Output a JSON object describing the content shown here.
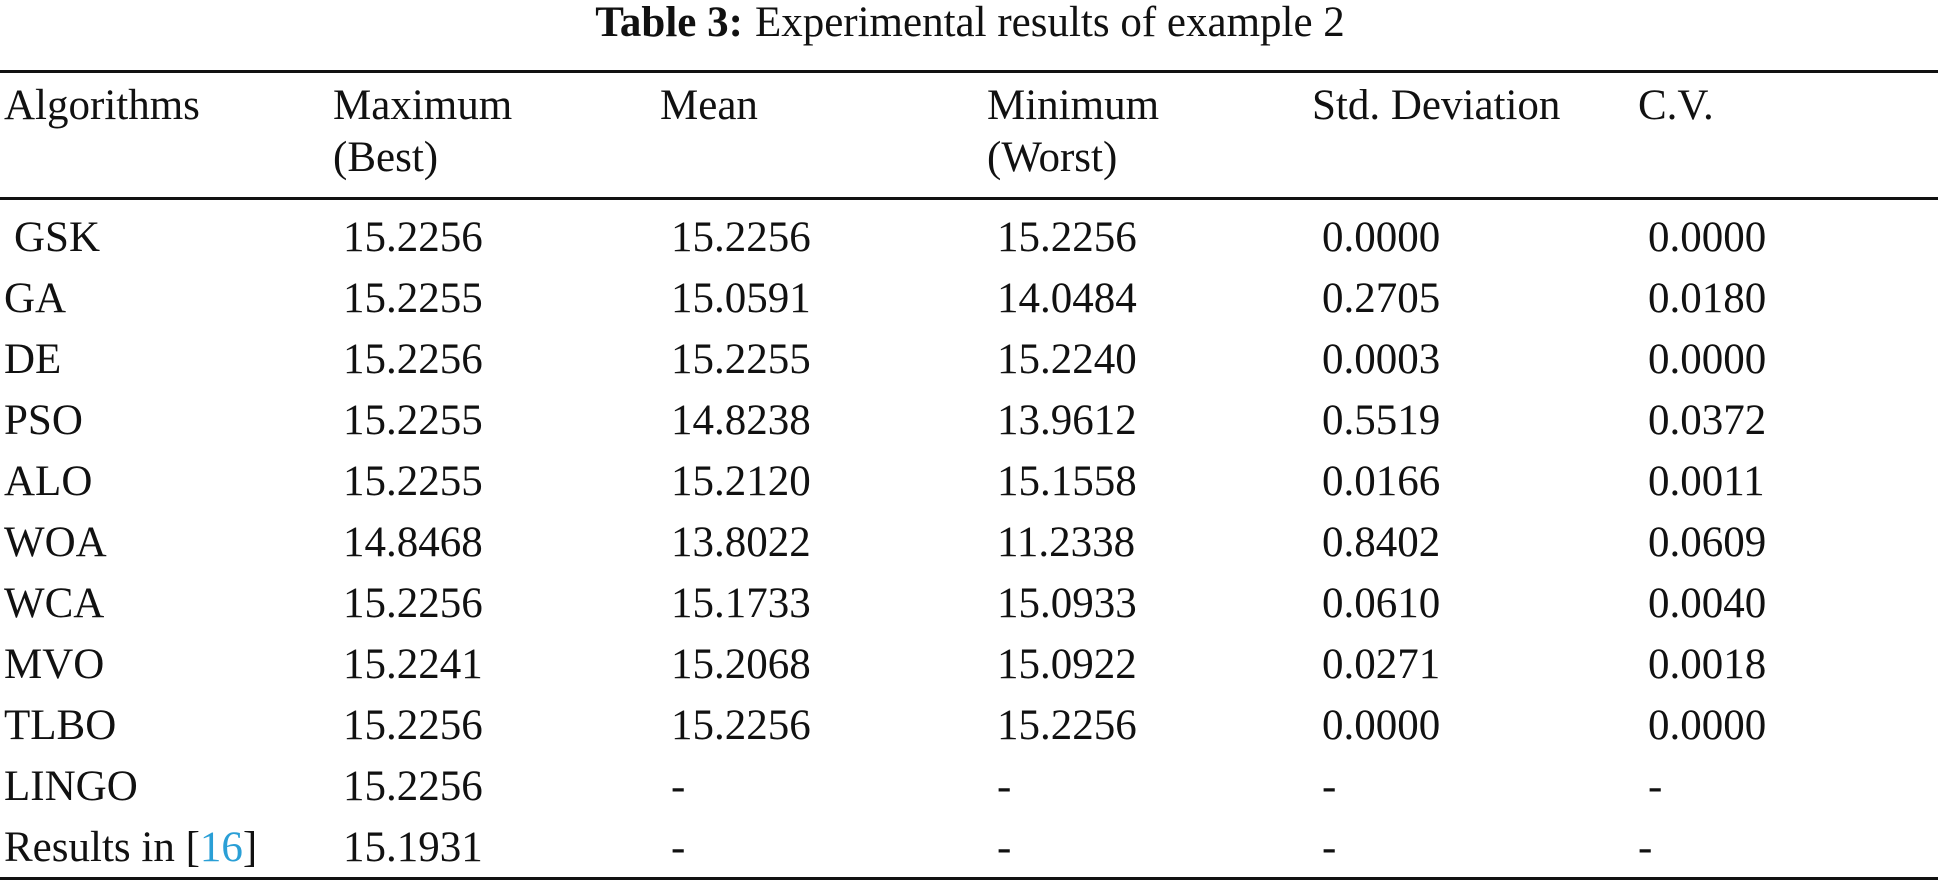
{
  "caption": {
    "label": "Table 3:",
    "text": "Experimental results of example 2"
  },
  "columns": [
    {
      "line1": "Algorithms",
      "line2": ""
    },
    {
      "line1": "Maximum",
      "line2": "(Best)"
    },
    {
      "line1": "Mean",
      "line2": ""
    },
    {
      "line1": "Minimum",
      "line2": "(Worst)"
    },
    {
      "line1": "Std. Deviation",
      "line2": ""
    },
    {
      "line1": "C.V.",
      "line2": ""
    }
  ],
  "rows": [
    {
      "algorithm": "GSK",
      "max": "15.2256",
      "mean": "15.2256",
      "min": "15.2256",
      "std": "0.0000",
      "cv": "0.0000"
    },
    {
      "algorithm": "GA",
      "max": "15.2255",
      "mean": "15.0591",
      "min": "14.0484",
      "std": "0.2705",
      "cv": "0.0180"
    },
    {
      "algorithm": "DE",
      "max": "15.2256",
      "mean": "15.2255",
      "min": "15.2240",
      "std": "0.0003",
      "cv": "0.0000"
    },
    {
      "algorithm": "PSO",
      "max": "15.2255",
      "mean": "14.8238",
      "min": "13.9612",
      "std": "0.5519",
      "cv": "0.0372"
    },
    {
      "algorithm": "ALO",
      "max": "15.2255",
      "mean": "15.2120",
      "min": "15.1558",
      "std": "0.0166",
      "cv": "0.0011"
    },
    {
      "algorithm": "WOA",
      "max": "14.8468",
      "mean": "13.8022",
      "min": "11.2338",
      "std": "0.8402",
      "cv": "0.0609"
    },
    {
      "algorithm": "WCA",
      "max": "15.2256",
      "mean": "15.1733",
      "min": "15.0933",
      "std": "0.0610",
      "cv": "0.0040"
    },
    {
      "algorithm": "MVO",
      "max": "15.2241",
      "mean": "15.2068",
      "min": "15.0922",
      "std": "0.0271",
      "cv": "0.0018"
    },
    {
      "algorithm": "TLBO",
      "max": "15.2256",
      "mean": "15.2256",
      "min": "15.2256",
      "std": "0.0000",
      "cv": "0.0000"
    },
    {
      "algorithm": "LINGO",
      "max": "15.2256",
      "mean": "-",
      "min": "-",
      "std": "-",
      "cv": "-"
    },
    {
      "algorithm_prefix": "Results in [",
      "algorithm_ref": "16",
      "algorithm_suffix": "]",
      "max": "15.1931",
      "mean": "-",
      "min": "-",
      "std": "-",
      "cv": "-"
    }
  ]
}
